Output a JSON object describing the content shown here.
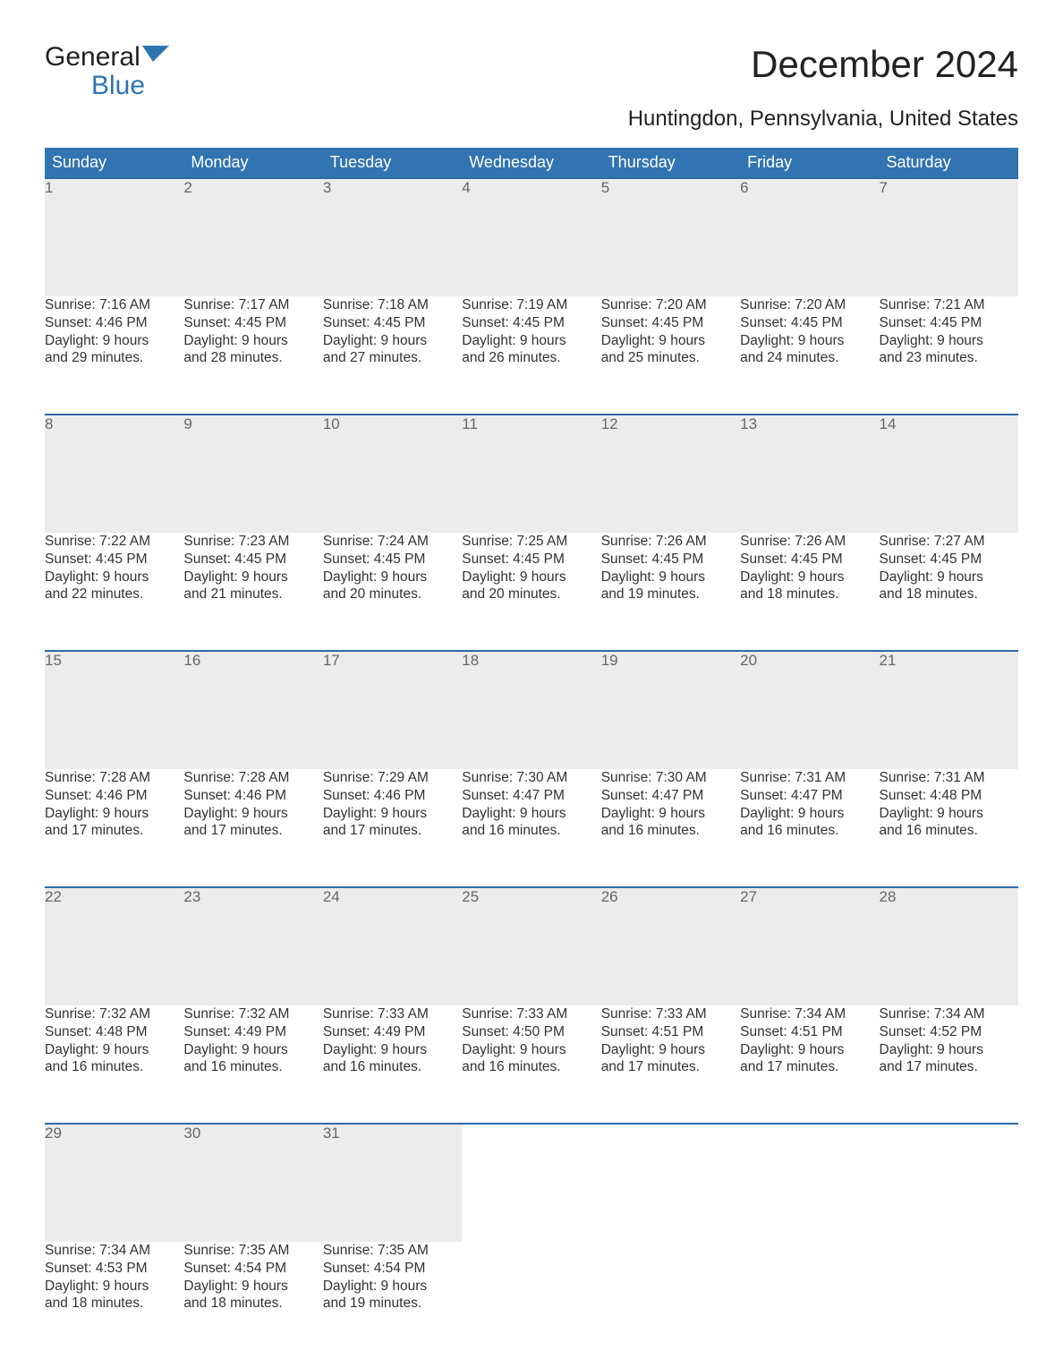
{
  "brand": {
    "word1": "General",
    "word2": "Blue"
  },
  "title": "December 2024",
  "subtitle": "Huntingdon, Pennsylvania, United States",
  "colors": {
    "header_bg": "#3174b1",
    "header_text": "#ffffff",
    "daynum_bg": "#ececec",
    "daynum_border": "#2e6aa6",
    "daynum_text": "#666666",
    "body_text": "#333333",
    "brand_blue": "#2e75b0",
    "page_bg": "#ffffff"
  },
  "typography": {
    "title_fontsize": 42,
    "subtitle_fontsize": 24,
    "header_fontsize": 18,
    "daynum_fontsize": 17,
    "body_fontsize": 15.5
  },
  "weekdays": [
    "Sunday",
    "Monday",
    "Tuesday",
    "Wednesday",
    "Thursday",
    "Friday",
    "Saturday"
  ],
  "weeks": [
    [
      {
        "day": "1",
        "sunrise": "Sunrise: 7:16 AM",
        "sunset": "Sunset: 4:46 PM",
        "dl1": "Daylight: 9 hours",
        "dl2": "and 29 minutes."
      },
      {
        "day": "2",
        "sunrise": "Sunrise: 7:17 AM",
        "sunset": "Sunset: 4:45 PM",
        "dl1": "Daylight: 9 hours",
        "dl2": "and 28 minutes."
      },
      {
        "day": "3",
        "sunrise": "Sunrise: 7:18 AM",
        "sunset": "Sunset: 4:45 PM",
        "dl1": "Daylight: 9 hours",
        "dl2": "and 27 minutes."
      },
      {
        "day": "4",
        "sunrise": "Sunrise: 7:19 AM",
        "sunset": "Sunset: 4:45 PM",
        "dl1": "Daylight: 9 hours",
        "dl2": "and 26 minutes."
      },
      {
        "day": "5",
        "sunrise": "Sunrise: 7:20 AM",
        "sunset": "Sunset: 4:45 PM",
        "dl1": "Daylight: 9 hours",
        "dl2": "and 25 minutes."
      },
      {
        "day": "6",
        "sunrise": "Sunrise: 7:20 AM",
        "sunset": "Sunset: 4:45 PM",
        "dl1": "Daylight: 9 hours",
        "dl2": "and 24 minutes."
      },
      {
        "day": "7",
        "sunrise": "Sunrise: 7:21 AM",
        "sunset": "Sunset: 4:45 PM",
        "dl1": "Daylight: 9 hours",
        "dl2": "and 23 minutes."
      }
    ],
    [
      {
        "day": "8",
        "sunrise": "Sunrise: 7:22 AM",
        "sunset": "Sunset: 4:45 PM",
        "dl1": "Daylight: 9 hours",
        "dl2": "and 22 minutes."
      },
      {
        "day": "9",
        "sunrise": "Sunrise: 7:23 AM",
        "sunset": "Sunset: 4:45 PM",
        "dl1": "Daylight: 9 hours",
        "dl2": "and 21 minutes."
      },
      {
        "day": "10",
        "sunrise": "Sunrise: 7:24 AM",
        "sunset": "Sunset: 4:45 PM",
        "dl1": "Daylight: 9 hours",
        "dl2": "and 20 minutes."
      },
      {
        "day": "11",
        "sunrise": "Sunrise: 7:25 AM",
        "sunset": "Sunset: 4:45 PM",
        "dl1": "Daylight: 9 hours",
        "dl2": "and 20 minutes."
      },
      {
        "day": "12",
        "sunrise": "Sunrise: 7:26 AM",
        "sunset": "Sunset: 4:45 PM",
        "dl1": "Daylight: 9 hours",
        "dl2": "and 19 minutes."
      },
      {
        "day": "13",
        "sunrise": "Sunrise: 7:26 AM",
        "sunset": "Sunset: 4:45 PM",
        "dl1": "Daylight: 9 hours",
        "dl2": "and 18 minutes."
      },
      {
        "day": "14",
        "sunrise": "Sunrise: 7:27 AM",
        "sunset": "Sunset: 4:45 PM",
        "dl1": "Daylight: 9 hours",
        "dl2": "and 18 minutes."
      }
    ],
    [
      {
        "day": "15",
        "sunrise": "Sunrise: 7:28 AM",
        "sunset": "Sunset: 4:46 PM",
        "dl1": "Daylight: 9 hours",
        "dl2": "and 17 minutes."
      },
      {
        "day": "16",
        "sunrise": "Sunrise: 7:28 AM",
        "sunset": "Sunset: 4:46 PM",
        "dl1": "Daylight: 9 hours",
        "dl2": "and 17 minutes."
      },
      {
        "day": "17",
        "sunrise": "Sunrise: 7:29 AM",
        "sunset": "Sunset: 4:46 PM",
        "dl1": "Daylight: 9 hours",
        "dl2": "and 17 minutes."
      },
      {
        "day": "18",
        "sunrise": "Sunrise: 7:30 AM",
        "sunset": "Sunset: 4:47 PM",
        "dl1": "Daylight: 9 hours",
        "dl2": "and 16 minutes."
      },
      {
        "day": "19",
        "sunrise": "Sunrise: 7:30 AM",
        "sunset": "Sunset: 4:47 PM",
        "dl1": "Daylight: 9 hours",
        "dl2": "and 16 minutes."
      },
      {
        "day": "20",
        "sunrise": "Sunrise: 7:31 AM",
        "sunset": "Sunset: 4:47 PM",
        "dl1": "Daylight: 9 hours",
        "dl2": "and 16 minutes."
      },
      {
        "day": "21",
        "sunrise": "Sunrise: 7:31 AM",
        "sunset": "Sunset: 4:48 PM",
        "dl1": "Daylight: 9 hours",
        "dl2": "and 16 minutes."
      }
    ],
    [
      {
        "day": "22",
        "sunrise": "Sunrise: 7:32 AM",
        "sunset": "Sunset: 4:48 PM",
        "dl1": "Daylight: 9 hours",
        "dl2": "and 16 minutes."
      },
      {
        "day": "23",
        "sunrise": "Sunrise: 7:32 AM",
        "sunset": "Sunset: 4:49 PM",
        "dl1": "Daylight: 9 hours",
        "dl2": "and 16 minutes."
      },
      {
        "day": "24",
        "sunrise": "Sunrise: 7:33 AM",
        "sunset": "Sunset: 4:49 PM",
        "dl1": "Daylight: 9 hours",
        "dl2": "and 16 minutes."
      },
      {
        "day": "25",
        "sunrise": "Sunrise: 7:33 AM",
        "sunset": "Sunset: 4:50 PM",
        "dl1": "Daylight: 9 hours",
        "dl2": "and 16 minutes."
      },
      {
        "day": "26",
        "sunrise": "Sunrise: 7:33 AM",
        "sunset": "Sunset: 4:51 PM",
        "dl1": "Daylight: 9 hours",
        "dl2": "and 17 minutes."
      },
      {
        "day": "27",
        "sunrise": "Sunrise: 7:34 AM",
        "sunset": "Sunset: 4:51 PM",
        "dl1": "Daylight: 9 hours",
        "dl2": "and 17 minutes."
      },
      {
        "day": "28",
        "sunrise": "Sunrise: 7:34 AM",
        "sunset": "Sunset: 4:52 PM",
        "dl1": "Daylight: 9 hours",
        "dl2": "and 17 minutes."
      }
    ],
    [
      {
        "day": "29",
        "sunrise": "Sunrise: 7:34 AM",
        "sunset": "Sunset: 4:53 PM",
        "dl1": "Daylight: 9 hours",
        "dl2": "and 18 minutes."
      },
      {
        "day": "30",
        "sunrise": "Sunrise: 7:35 AM",
        "sunset": "Sunset: 4:54 PM",
        "dl1": "Daylight: 9 hours",
        "dl2": "and 18 minutes."
      },
      {
        "day": "31",
        "sunrise": "Sunrise: 7:35 AM",
        "sunset": "Sunset: 4:54 PM",
        "dl1": "Daylight: 9 hours",
        "dl2": "and 19 minutes."
      },
      null,
      null,
      null,
      null
    ]
  ]
}
